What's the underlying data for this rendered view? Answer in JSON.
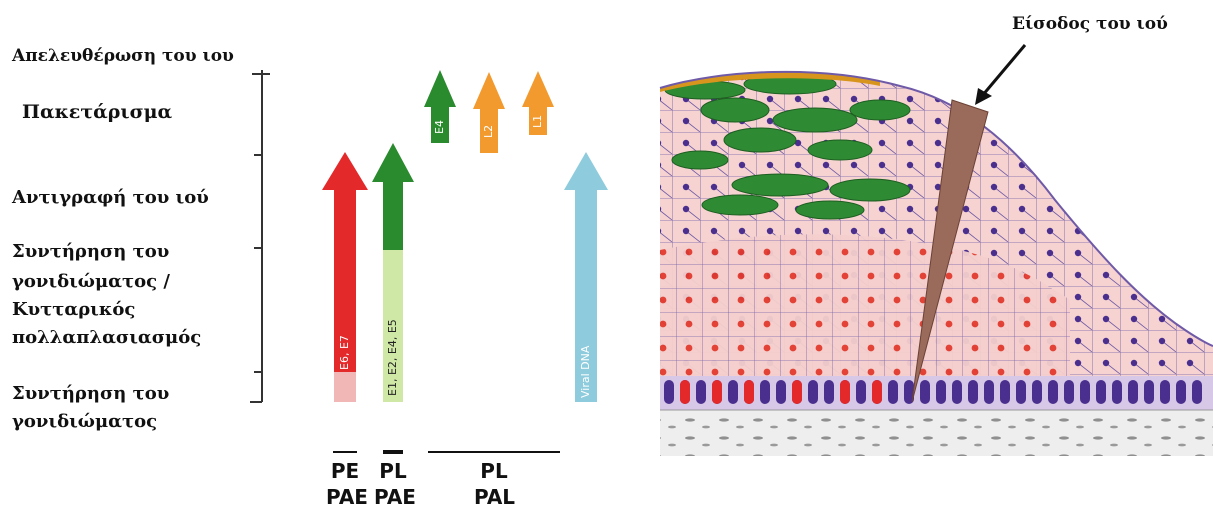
{
  "stages": [
    "Απελευθέρωση του ιου",
    "Πακετάρισμα",
    "Αντιγραφή του ιού",
    "Συντήρηση του",
    "γονιδιώματος /",
    "Κυτταρικός",
    "πολλαπλασιασμός",
    "Συντήρηση του",
    "γονιδιώματος"
  ],
  "arrows": {
    "e6_e7": "E6, E7",
    "e1_e2_e4_e5": "E1, E2, E4, E5",
    "e4": "E4",
    "l2": "L2",
    "l1": "L1",
    "viral_dna": "Viral DNA"
  },
  "bottom_labels": {
    "pe": "PE",
    "pae1": "PAE",
    "pl1": "PL",
    "pae2": "PAE",
    "pl2": "PL",
    "pal": "PAL"
  },
  "entry_label": "Είσοδος του ιού",
  "colors": {
    "red": "#e3292a",
    "green": "#2a8a2e",
    "orange": "#f29a2e",
    "light_blue": "#8ecbdc",
    "purple": "#5a3f98",
    "skin": "#f4cfcd"
  }
}
